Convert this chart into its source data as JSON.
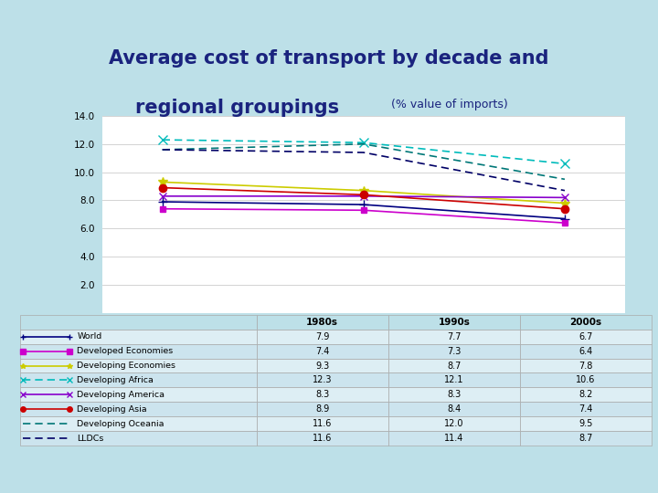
{
  "title_main": "Average cost of transport by decade and",
  "title_sub": "regional groupings",
  "title_sub2": "(% value of imports)",
  "background_color": "#bde0e8",
  "decades": [
    "1980s",
    "1990s",
    "2000s"
  ],
  "series": [
    {
      "label": "World",
      "values": [
        7.9,
        7.7,
        6.7
      ],
      "color": "#000080",
      "linestyle": "-",
      "marker": "+",
      "markersize": 7,
      "linewidth": 1.2,
      "dashes": []
    },
    {
      "label": "Developed Economies",
      "values": [
        7.4,
        7.3,
        6.4
      ],
      "color": "#cc00cc",
      "linestyle": "-",
      "marker": "s",
      "markersize": 5,
      "linewidth": 1.2,
      "dashes": []
    },
    {
      "label": "Developing Economies",
      "values": [
        9.3,
        8.7,
        7.8
      ],
      "color": "#cccc00",
      "linestyle": "-",
      "marker": "*",
      "markersize": 7,
      "linewidth": 1.2,
      "dashes": []
    },
    {
      "label": "Developing Africa",
      "values": [
        12.3,
        12.1,
        10.6
      ],
      "color": "#00bbbb",
      "linestyle": "--",
      "marker": "x",
      "markersize": 7,
      "linewidth": 1.2,
      "dashes": [
        5,
        3
      ]
    },
    {
      "label": "Developing America",
      "values": [
        8.3,
        8.3,
        8.2
      ],
      "color": "#8800cc",
      "linestyle": "-",
      "marker": "x",
      "markersize": 6,
      "linewidth": 1.2,
      "dashes": []
    },
    {
      "label": "Developing Asia",
      "values": [
        8.9,
        8.4,
        7.4
      ],
      "color": "#cc0000",
      "linestyle": "-",
      "marker": "o",
      "markersize": 6,
      "linewidth": 1.2,
      "dashes": []
    },
    {
      "label": "Developing Oceania",
      "values": [
        11.6,
        12.0,
        9.5
      ],
      "color": "#007777",
      "linestyle": "--",
      "marker": null,
      "markersize": 5,
      "linewidth": 1.2,
      "dashes": [
        5,
        3
      ]
    },
    {
      "label": "LLDCs",
      "values": [
        11.6,
        11.4,
        8.7
      ],
      "color": "#000066",
      "linestyle": "--",
      "marker": null,
      "markersize": 5,
      "linewidth": 1.2,
      "dashes": [
        5,
        3
      ]
    }
  ],
  "ylim": [
    0,
    14.0
  ],
  "yticks": [
    0,
    2.0,
    4.0,
    6.0,
    8.0,
    10.0,
    12.0,
    14.0
  ],
  "chart_bg": "#ffffff",
  "title_color": "#1a237e",
  "title_fontsize": 15,
  "subtitle_fontsize": 15,
  "subtitle2_fontsize": 9
}
